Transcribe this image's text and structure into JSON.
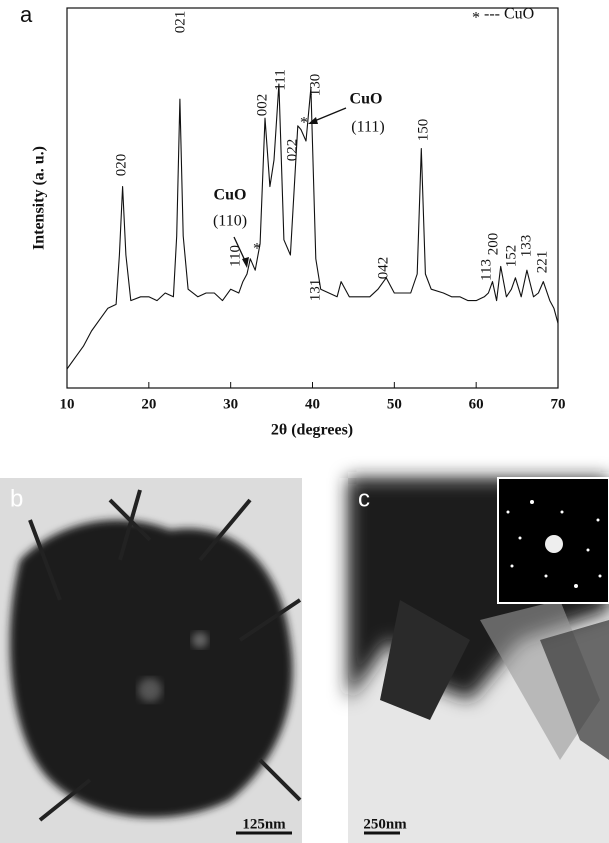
{
  "chart_data": {
    "type": "line",
    "panel_label": "a",
    "xlabel": "2θ (degrees)",
    "ylabel": "Intensity (a. u.)",
    "legend": {
      "symbol": "*",
      "label": "--- CuO"
    },
    "x": [
      10,
      11,
      12,
      13,
      14,
      15,
      16,
      16.4,
      16.8,
      17.2,
      17.8,
      19,
      20,
      21,
      22,
      23,
      23.4,
      23.8,
      24.2,
      24.8,
      26,
      27,
      28,
      29,
      30,
      31,
      31.5,
      32,
      32.4,
      33,
      33.6,
      34.2,
      34.8,
      35.3,
      35.9,
      36.5,
      37.3,
      38.2,
      38.6,
      39.2,
      39.8,
      40.4,
      41,
      42,
      43,
      43.5,
      44.5,
      46,
      47,
      48,
      49,
      50,
      51,
      52,
      52.8,
      53.3,
      53.8,
      54.5,
      56,
      57,
      58,
      59,
      60,
      61,
      61.5,
      62,
      62.5,
      63,
      63.7,
      64.3,
      64.8,
      65.5,
      66.2,
      67,
      67.6,
      68.2,
      69,
      69.5,
      70
    ],
    "y": [
      5,
      8,
      11,
      15,
      18,
      21,
      22,
      35,
      53,
      35,
      23,
      24,
      24,
      23,
      25,
      24,
      40,
      76,
      40,
      26,
      24,
      25,
      25,
      23,
      26,
      25,
      28,
      30,
      34,
      31,
      38,
      71,
      53,
      60,
      80,
      39,
      35,
      69,
      68,
      65,
      79,
      34,
      26,
      25,
      24,
      28,
      24,
      24,
      24,
      26,
      29,
      25,
      25,
      25,
      30,
      63,
      30,
      26,
      25,
      24,
      24,
      23,
      23,
      24,
      25,
      28,
      23,
      32,
      24,
      26,
      29,
      24,
      31,
      24,
      25,
      28,
      23,
      21,
      17
    ],
    "color": "#111111",
    "xlim": [
      10,
      70
    ],
    "ylim": [
      0,
      100
    ],
    "xticks": [
      10,
      20,
      30,
      40,
      50,
      60,
      70
    ],
    "peak_labels": [
      "020",
      "021",
      "110",
      "002",
      "111",
      "022",
      "130",
      "131",
      "042",
      "150",
      "113",
      "200",
      "152",
      "133",
      "221"
    ],
    "annotations": [
      "CuO",
      "(110)",
      "CuO",
      "(111)"
    ]
  },
  "images": [
    {
      "label": "b",
      "scale_bar": "125nm"
    },
    {
      "label": "c",
      "scale_bar": "250nm"
    }
  ]
}
